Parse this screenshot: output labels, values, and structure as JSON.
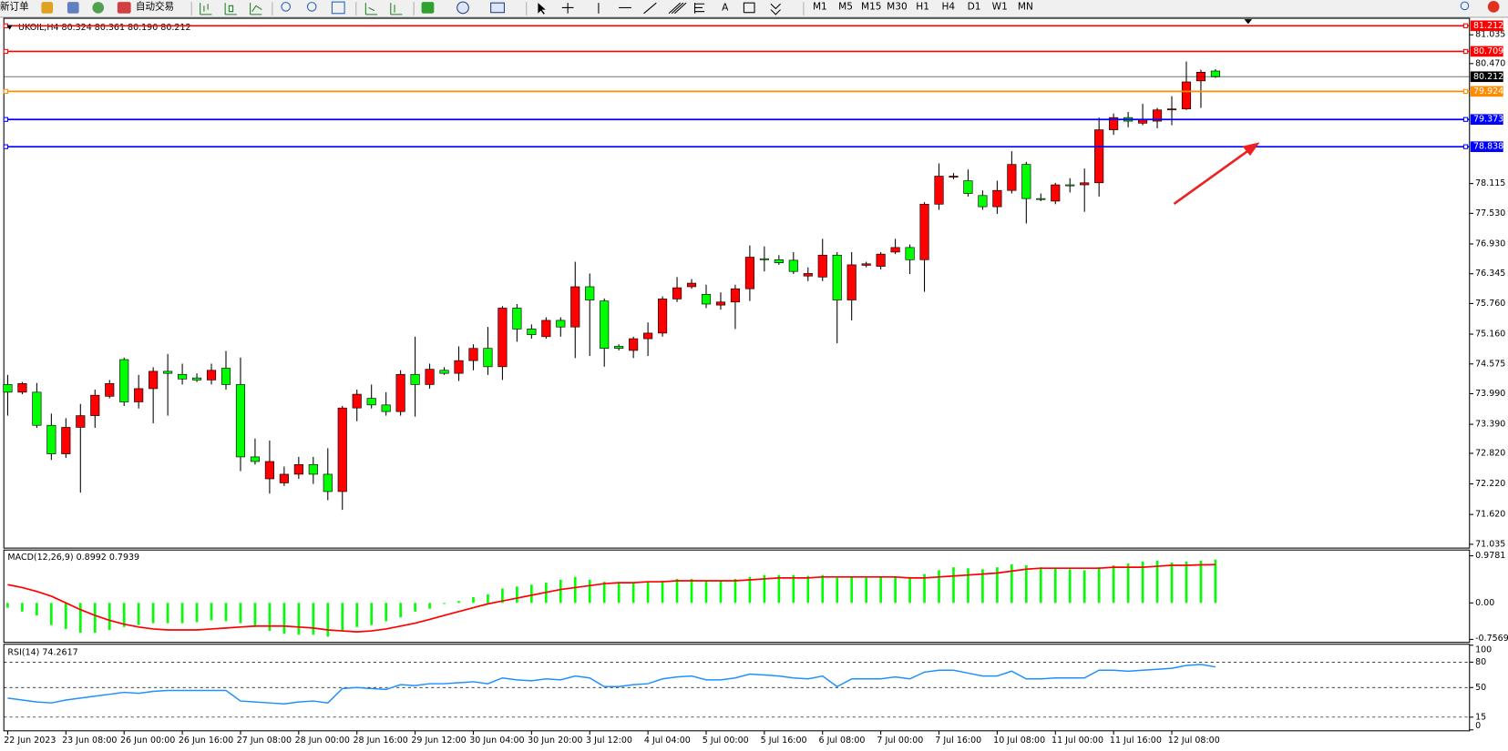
{
  "toolbar": {
    "new_order": "新订单",
    "auto_trading": "自动交易",
    "text_tool": "A",
    "timeframes": [
      "M1",
      "M5",
      "M15",
      "M30",
      "H1",
      "H4",
      "D1",
      "W1",
      "MN"
    ]
  },
  "chart_data": [
    {
      "type": "candlestick",
      "title": "UKOIL,H4  80.324 80.361 80.190 80.212",
      "categories": [
        "22 Jun 2023",
        null,
        null,
        null,
        "23 Jun 08:00",
        null,
        null,
        null,
        "26 Jun 00:00",
        null,
        null,
        null,
        "26 Jun 16:00",
        null,
        null,
        null,
        "27 Jun 08:00",
        null,
        null,
        null,
        "28 Jun 00:00",
        null,
        null,
        null,
        "28 Jun 16:00",
        null,
        null,
        null,
        "29 Jun 12:00",
        null,
        null,
        null,
        "30 Jun 04:00",
        null,
        null,
        null,
        "30 Jun 20:00",
        null,
        null,
        null,
        "3 Jul 12:00",
        null,
        null,
        null,
        "4 Jul 04:00",
        null,
        null,
        null,
        "5 Jul 00:00",
        null,
        null,
        null,
        "5 Jul 16:00",
        null,
        null,
        null,
        "6 Jul 08:00",
        null,
        null,
        null,
        "7 Jul 00:00",
        null,
        null,
        null,
        "7 Jul 16:00",
        null,
        null,
        null,
        "10 Jul 08:00",
        null,
        null,
        null,
        "11 Jul 00:00",
        null,
        null,
        null,
        "11 Jul 16:00",
        null,
        null,
        null,
        "12 Jul 08:00",
        null,
        null,
        null
      ],
      "open": [
        74.17,
        74.02,
        74.02,
        73.37,
        72.81,
        73.33,
        73.56,
        73.94,
        74.66,
        73.83,
        74.09,
        74.43,
        74.37,
        74.3,
        74.26,
        74.49,
        74.17,
        72.75,
        72.32,
        72.24,
        72.41,
        72.6,
        72.41,
        72.07,
        73.71,
        73.9,
        73.77,
        73.64,
        74.37,
        74.17,
        74.45,
        74.39,
        74.64,
        74.88,
        74.52,
        75.67,
        75.26,
        75.11,
        75.43,
        75.3,
        76.09,
        75.81,
        74.92,
        74.84,
        75.07,
        75.18,
        75.85,
        76.09,
        75.94,
        75.73,
        75.79,
        76.05,
        76.64,
        76.62,
        76.61,
        76.3,
        76.28,
        76.71,
        75.83,
        76.51,
        76.49,
        76.77,
        76.86,
        76.62,
        77.71,
        78.24,
        78.17,
        77.88,
        77.66,
        77.98,
        78.49,
        77.82,
        77.77,
        78.09,
        78.09,
        78.13,
        79.17,
        79.41,
        79.3,
        79.34,
        79.56,
        79.58,
        80.13,
        80.324
      ],
      "high": [
        74.36,
        74.22,
        74.2,
        73.6,
        73.51,
        73.79,
        74.07,
        74.26,
        74.7,
        74.36,
        74.51,
        74.77,
        74.58,
        74.39,
        74.58,
        74.83,
        74.7,
        73.11,
        73.07,
        72.56,
        72.75,
        72.75,
        72.92,
        73.75,
        74.07,
        74.17,
        74.02,
        74.45,
        75.11,
        74.58,
        74.51,
        74.92,
        74.96,
        75.3,
        75.71,
        75.75,
        75.35,
        75.49,
        75.49,
        76.58,
        76.35,
        75.86,
        74.96,
        75.11,
        75.39,
        75.9,
        76.28,
        76.24,
        76.13,
        75.98,
        76.13,
        76.9,
        76.88,
        76.71,
        76.77,
        76.47,
        77.03,
        76.77,
        76.77,
        76.58,
        76.77,
        77.03,
        76.92,
        77.75,
        78.51,
        78.32,
        78.39,
        77.98,
        78.17,
        78.75,
        78.54,
        77.92,
        78.13,
        78.22,
        78.41,
        79.41,
        79.49,
        79.52,
        79.68,
        79.6,
        79.83,
        80.51,
        80.35,
        80.361
      ],
      "low": [
        73.56,
        73.98,
        73.32,
        72.69,
        72.73,
        72.05,
        73.32,
        73.9,
        73.75,
        73.7,
        73.41,
        73.56,
        74.17,
        74.22,
        74.17,
        74.07,
        72.47,
        72.6,
        72.03,
        72.18,
        72.32,
        72.22,
        71.9,
        71.71,
        73.45,
        73.7,
        73.56,
        73.56,
        73.54,
        74.09,
        74.36,
        74.24,
        74.45,
        74.36,
        74.26,
        75.01,
        75.07,
        75.07,
        75.11,
        74.69,
        74.73,
        74.52,
        74.84,
        74.69,
        74.73,
        75.11,
        75.79,
        76.05,
        75.67,
        75.64,
        75.26,
        75.81,
        76.39,
        76.52,
        76.34,
        76.2,
        76.2,
        74.98,
        75.43,
        76.47,
        76.43,
        76.73,
        76.34,
        75.99,
        77.6,
        78.2,
        77.86,
        77.6,
        77.52,
        77.92,
        77.33,
        77.77,
        77.71,
        77.94,
        77.56,
        77.86,
        79.07,
        79.22,
        79.26,
        79.2,
        79.26,
        79.56,
        79.6,
        80.19
      ],
      "close": [
        74.02,
        74.19,
        73.37,
        72.81,
        73.33,
        73.56,
        73.96,
        74.19,
        73.83,
        74.09,
        74.43,
        74.39,
        74.28,
        74.26,
        74.45,
        74.17,
        72.75,
        72.66,
        72.66,
        72.41,
        72.6,
        72.41,
        72.07,
        73.71,
        73.98,
        73.77,
        73.64,
        74.37,
        74.17,
        74.47,
        74.39,
        74.64,
        74.88,
        74.52,
        75.67,
        75.26,
        75.15,
        75.43,
        75.3,
        76.09,
        75.83,
        74.88,
        74.88,
        75.07,
        75.18,
        75.85,
        76.07,
        76.16,
        75.75,
        75.79,
        76.05,
        76.67,
        76.62,
        76.56,
        76.39,
        76.35,
        76.71,
        75.83,
        76.52,
        76.54,
        76.73,
        76.86,
        76.62,
        77.71,
        78.26,
        78.26,
        77.92,
        77.66,
        77.98,
        78.49,
        77.82,
        77.81,
        78.09,
        78.07,
        78.13,
        79.17,
        79.41,
        79.34,
        79.37,
        79.56,
        79.58,
        80.11,
        80.3,
        80.212
      ],
      "up_color": "#ff0000",
      "down_color": "#00ff00",
      "ylim": [
        70.96,
        81.34
      ],
      "yticks": [
        81.035,
        {
          "value": 80.47,
          "label": "80.470"
        },
        78.115,
        {
          "value": 77.53,
          "label": "77.530"
        },
        {
          "value": 76.93,
          "label": "76.930"
        },
        76.345,
        {
          "value": 75.76,
          "label": "75.760"
        },
        {
          "value": 75.16,
          "label": "75.160"
        },
        74.575,
        {
          "value": 73.99,
          "label": "73.990"
        },
        {
          "value": 73.39,
          "label": "73.390"
        },
        {
          "value": 72.82,
          "label": "72.820"
        },
        {
          "value": 72.22,
          "label": "72.220"
        },
        {
          "value": 71.62,
          "label": "71.620"
        },
        71.035
      ],
      "levels": [
        {
          "value": 81.212,
          "color": "#ff0000"
        },
        {
          "value": 80.709,
          "color": "#ff0000"
        },
        {
          "value": 79.924,
          "color": "#ff8c00"
        },
        {
          "value": 79.373,
          "color": "#0000ff"
        },
        {
          "value": 78.838,
          "color": "#0000ff"
        }
      ],
      "current_price": {
        "value": 80.212,
        "color": "#000000"
      }
    },
    {
      "type": "macd",
      "title": "MACD(12,26,9) 0.8992 0.7939",
      "histogram": {
        "color": "#00ff00",
        "values": [
          -0.1,
          -0.18,
          -0.26,
          -0.46,
          -0.54,
          -0.62,
          -0.62,
          -0.56,
          -0.5,
          -0.46,
          -0.42,
          -0.42,
          -0.42,
          -0.4,
          -0.36,
          -0.38,
          -0.42,
          -0.5,
          -0.58,
          -0.64,
          -0.66,
          -0.66,
          -0.7,
          -0.58,
          -0.5,
          -0.46,
          -0.38,
          -0.3,
          -0.18,
          -0.12,
          -0.02,
          0.04,
          0.12,
          0.18,
          0.3,
          0.34,
          0.38,
          0.42,
          0.48,
          0.54,
          0.48,
          0.44,
          0.42,
          0.42,
          0.44,
          0.46,
          0.5,
          0.5,
          0.46,
          0.46,
          0.5,
          0.54,
          0.58,
          0.58,
          0.58,
          0.56,
          0.58,
          0.52,
          0.54,
          0.52,
          0.54,
          0.54,
          0.54,
          0.6,
          0.68,
          0.74,
          0.72,
          0.7,
          0.74,
          0.8,
          0.78,
          0.74,
          0.72,
          0.7,
          0.68,
          0.74,
          0.78,
          0.82,
          0.86,
          0.88,
          0.84,
          0.86,
          0.88,
          0.8992
        ]
      },
      "signal": {
        "color": "#ff0000",
        "values": [
          0.38,
          0.32,
          0.24,
          0.14,
          0,
          -0.14,
          -0.26,
          -0.36,
          -0.44,
          -0.5,
          -0.54,
          -0.56,
          -0.56,
          -0.56,
          -0.54,
          -0.52,
          -0.5,
          -0.48,
          -0.48,
          -0.48,
          -0.5,
          -0.52,
          -0.56,
          -0.58,
          -0.6,
          -0.58,
          -0.54,
          -0.48,
          -0.42,
          -0.34,
          -0.26,
          -0.18,
          -0.1,
          -0.02,
          0.04,
          0.1,
          0.16,
          0.22,
          0.28,
          0.32,
          0.36,
          0.4,
          0.42,
          0.42,
          0.44,
          0.44,
          0.46,
          0.46,
          0.46,
          0.46,
          0.46,
          0.48,
          0.5,
          0.52,
          0.52,
          0.52,
          0.54,
          0.54,
          0.54,
          0.54,
          0.54,
          0.54,
          0.52,
          0.52,
          0.54,
          0.56,
          0.58,
          0.6,
          0.62,
          0.66,
          0.7,
          0.72,
          0.72,
          0.72,
          0.72,
          0.72,
          0.74,
          0.74,
          0.74,
          0.76,
          0.78,
          0.78,
          0.79,
          0.7939
        ]
      },
      "ylim": [
        -0.818,
        1.098
      ],
      "yticks": [
        0.9781,
        {
          "value": 0,
          "label": "0.00"
        },
        -0.7569
      ]
    },
    {
      "type": "rsi",
      "title": "RSI(14) 74.2617",
      "color": "#1e90ff",
      "values": [
        37.5,
        35.2,
        33.0,
        31.8,
        35.2,
        37.5,
        39.8,
        42.0,
        44.3,
        43.2,
        45.5,
        46.6,
        46.6,
        46.6,
        46.6,
        46.6,
        34.1,
        33.0,
        31.8,
        30.7,
        33.0,
        34.1,
        31.8,
        48.9,
        50.0,
        48.9,
        47.7,
        53.4,
        52.3,
        54.5,
        54.5,
        55.7,
        56.8,
        54.5,
        61.4,
        59.1,
        58.0,
        60.2,
        59.1,
        63.6,
        61.4,
        51.1,
        51.1,
        53.4,
        54.5,
        60.2,
        62.5,
        63.6,
        59.1,
        59.1,
        61.4,
        65.9,
        64.8,
        63.6,
        61.4,
        60.2,
        63.6,
        51.1,
        60.2,
        60.2,
        60.2,
        62.5,
        60.2,
        68.2,
        70.5,
        70.5,
        67.0,
        63.6,
        63.6,
        69.3,
        60.2,
        60.2,
        61.4,
        61.4,
        61.4,
        70.5,
        70.5,
        69.3,
        70.5,
        71.6,
        72.7,
        76.1,
        77.3,
        74.2617
      ],
      "ylim": [
        0,
        100
      ],
      "yticks": [
        100,
        80,
        50,
        15,
        0
      ],
      "levels": [
        80,
        50,
        15
      ]
    }
  ]
}
